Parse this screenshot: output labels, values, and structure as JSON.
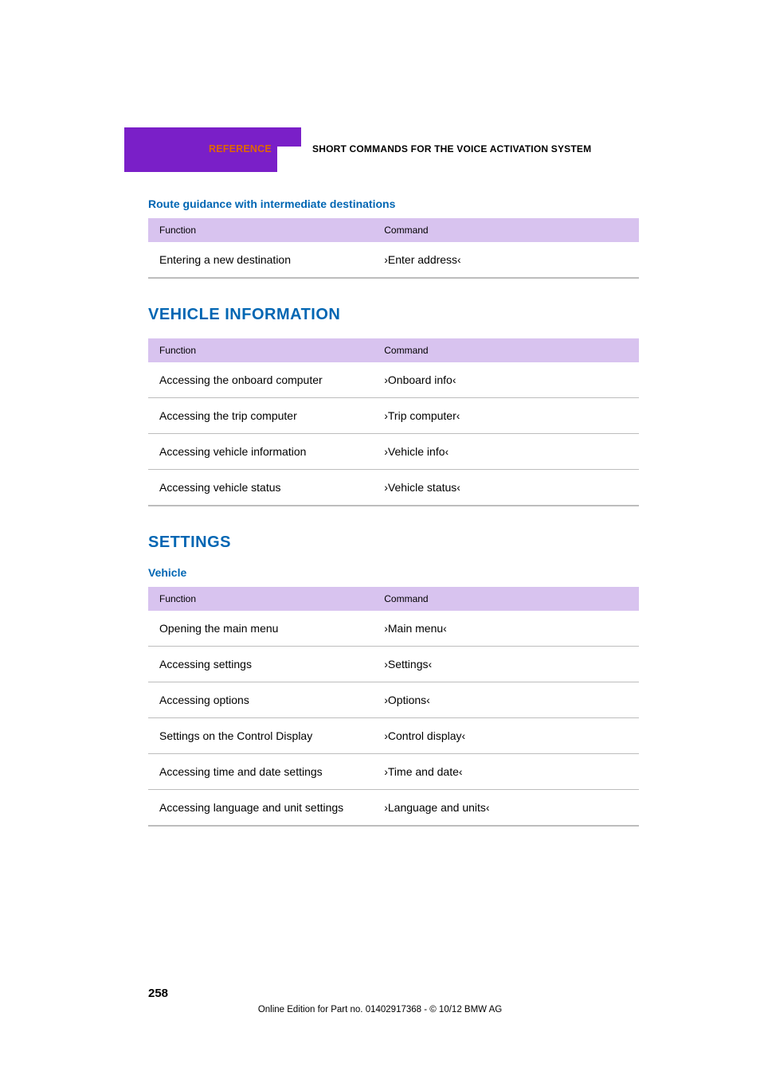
{
  "colors": {
    "brand_accent": "#0066b3",
    "section_orange": "#e06600",
    "tab_bg": "#7a1fc8",
    "notch_bg": "#7a1fc8",
    "header_row_bg": "#d8c3ef",
    "row_divider": "#bdbdbd",
    "table_bottom_border": "#bdbdbd",
    "ref_text": "#e06600"
  },
  "header": {
    "reference_label": "REFERENCE",
    "chapter_title": "SHORT COMMANDS FOR THE VOICE ACTIVATION SYSTEM"
  },
  "table_labels": {
    "function": "Function",
    "command": "Command"
  },
  "section_route": {
    "subheading": "Route guidance with intermediate destinations",
    "rows": [
      {
        "function": "Entering a new destination",
        "command": "›Enter address‹"
      }
    ]
  },
  "section_vehicle_info": {
    "title": "VEHICLE INFORMATION",
    "rows": [
      {
        "function": "Accessing the onboard computer",
        "command": "›Onboard info‹"
      },
      {
        "function": "Accessing the trip computer",
        "command": "›Trip computer‹"
      },
      {
        "function": "Accessing vehicle information",
        "command": "›Vehicle info‹"
      },
      {
        "function": "Accessing vehicle status",
        "command": "›Vehicle status‹"
      }
    ]
  },
  "section_settings": {
    "title": "SETTINGS",
    "subheading": "Vehicle",
    "rows": [
      {
        "function": "Opening the main menu",
        "command": "›Main menu‹"
      },
      {
        "function": "Accessing settings",
        "command": "›Settings‹"
      },
      {
        "function": "Accessing options",
        "command": "›Options‹"
      },
      {
        "function": "Settings on the Control Display",
        "command": "›Control display‹"
      },
      {
        "function": "Accessing time and date settings",
        "command": "›Time and date‹"
      },
      {
        "function": "Accessing language and unit settings",
        "command": "›Language and units‹"
      }
    ]
  },
  "footer": {
    "page_number": "258",
    "line": "Online Edition for Part no. 01402917368 - © 10/12 BMW AG"
  }
}
